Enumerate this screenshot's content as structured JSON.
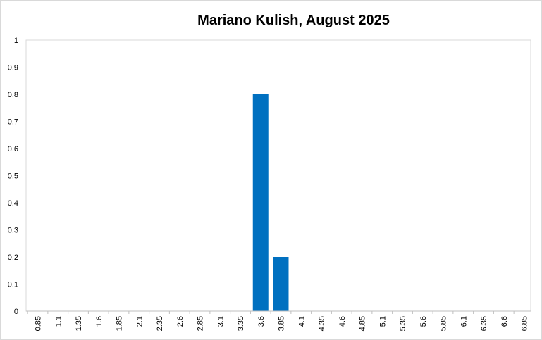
{
  "chart_data": {
    "type": "bar",
    "title": "Mariano Kulish, August 2025",
    "categories": [
      "0.85",
      "1.1",
      "1.35",
      "1.6",
      "1.85",
      "2.1",
      "2.35",
      "2.6",
      "2.85",
      "3.1",
      "3.35",
      "3.6",
      "3.85",
      "4.1",
      "4.35",
      "4.6",
      "4.85",
      "5.1",
      "5.35",
      "5.6",
      "5.85",
      "6.1",
      "6.35",
      "6.6",
      "6.85"
    ],
    "values": [
      0,
      0,
      0,
      0,
      0,
      0,
      0,
      0,
      0,
      0,
      0,
      0.8,
      0.2,
      0,
      0,
      0,
      0,
      0,
      0,
      0,
      0,
      0,
      0,
      0,
      0
    ],
    "ylim": [
      0,
      1
    ],
    "yticks": [
      "0",
      "0.1",
      "0.2",
      "0.3",
      "0.4",
      "0.5",
      "0.6",
      "0.7",
      "0.8",
      "0.9",
      "1"
    ],
    "xlabel": "",
    "ylabel": "",
    "grid": false,
    "legend": "none",
    "bar_color": "#0070c0"
  }
}
